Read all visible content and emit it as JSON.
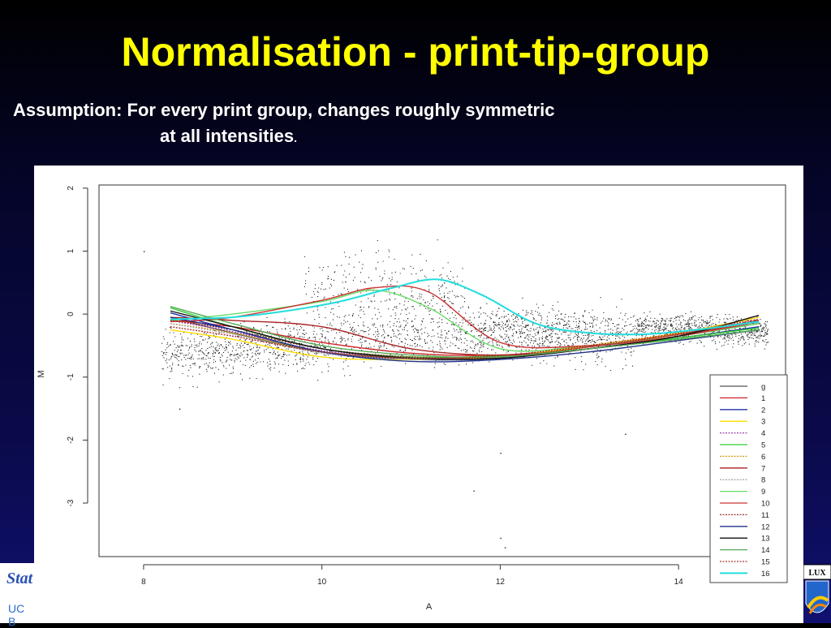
{
  "slide": {
    "title": "Normalisation - print-tip-group",
    "assumption_line1": "Assumption: For every print group, changes roughly symmetric",
    "assumption_line2": "at all intensities",
    "assumption_end": "."
  },
  "logos": {
    "left_text": "Stat",
    "left_caption": "UC B",
    "right_text": "LUX"
  },
  "chart_data": {
    "type": "scatter",
    "xlabel": "A",
    "ylabel": "M",
    "xlim": [
      7.5,
      15.2
    ],
    "ylim": [
      -3.85,
      2.05
    ],
    "x_ticks": [
      "8",
      "10",
      "12",
      "14"
    ],
    "y_ticks": [
      "2",
      "1",
      "0",
      "-1",
      "-2",
      "-3"
    ],
    "x_tick_values": [
      8,
      10,
      12,
      14
    ],
    "y_tick_values": [
      2,
      1,
      0,
      -1,
      -2,
      -3
    ],
    "grid": false,
    "legend_position": "bottom-right",
    "series": [
      {
        "name": "g",
        "color": "#555555",
        "style": "solid",
        "x": [
          8.3,
          9,
          10,
          11,
          12,
          13,
          14,
          14.9
        ],
        "y": [
          -0.05,
          -0.3,
          -0.6,
          -0.7,
          -0.68,
          -0.55,
          -0.35,
          -0.15
        ]
      },
      {
        "name": "1",
        "color": "#cc2222",
        "style": "solid",
        "x": [
          8.3,
          9,
          10,
          11,
          12,
          13,
          14,
          14.9
        ],
        "y": [
          -0.1,
          -0.2,
          -0.45,
          -0.62,
          -0.65,
          -0.52,
          -0.32,
          -0.12
        ]
      },
      {
        "name": "2",
        "color": "#2233aa",
        "style": "solid",
        "x": [
          8.3,
          9,
          10,
          11,
          12,
          13,
          14,
          14.9
        ],
        "y": [
          0.02,
          -0.25,
          -0.6,
          -0.72,
          -0.7,
          -0.55,
          -0.38,
          -0.2
        ]
      },
      {
        "name": "3",
        "color": "#ffdd00",
        "style": "solid",
        "x": [
          8.3,
          9,
          10,
          11,
          12,
          13,
          14,
          14.9
        ],
        "y": [
          -0.25,
          -0.4,
          -0.68,
          -0.72,
          -0.68,
          -0.5,
          -0.3,
          -0.05
        ]
      },
      {
        "name": "4",
        "color": "#9944aa",
        "style": "dotted",
        "x": [
          8.3,
          9,
          10,
          11,
          12,
          13,
          14,
          14.9
        ],
        "y": [
          -0.1,
          -0.28,
          -0.58,
          -0.7,
          -0.7,
          -0.55,
          -0.35,
          -0.15
        ]
      },
      {
        "name": "5",
        "color": "#33cc33",
        "style": "solid",
        "x": [
          8.3,
          9,
          10,
          11,
          12,
          13,
          14,
          14.9
        ],
        "y": [
          0.1,
          -0.2,
          -0.55,
          -0.68,
          -0.66,
          -0.55,
          -0.38,
          -0.22
        ]
      },
      {
        "name": "6",
        "color": "#cc9900",
        "style": "dotted",
        "x": [
          8.3,
          9,
          10,
          11,
          12,
          13,
          14,
          14.9
        ],
        "y": [
          -0.15,
          -0.3,
          -0.6,
          -0.7,
          -0.68,
          -0.52,
          -0.32,
          -0.1
        ]
      },
      {
        "name": "7",
        "color": "#aa2222",
        "style": "solid",
        "x": [
          8.3,
          9,
          10,
          11,
          12,
          13,
          14,
          14.9
        ],
        "y": [
          -0.05,
          -0.1,
          -0.2,
          -0.55,
          -0.65,
          -0.55,
          -0.35,
          -0.1
        ]
      },
      {
        "name": "8",
        "color": "#aaaaaa",
        "style": "dotted",
        "x": [
          8.3,
          9,
          10,
          11,
          12,
          13,
          14,
          14.9
        ],
        "y": [
          -0.15,
          -0.32,
          -0.62,
          -0.72,
          -0.7,
          -0.55,
          -0.35,
          -0.12
        ]
      },
      {
        "name": "9",
        "color": "#66dd66",
        "style": "solid",
        "x": [
          8.3,
          9,
          10,
          10.6,
          11.2,
          12,
          13,
          14,
          14.9
        ],
        "y": [
          -0.1,
          0,
          0.2,
          0.38,
          0.1,
          -0.55,
          -0.5,
          -0.35,
          -0.15
        ]
      },
      {
        "name": "10",
        "color": "#cc3333",
        "style": "solid",
        "x": [
          8.3,
          9,
          10,
          10.6,
          11.2,
          12,
          13,
          14,
          14.9
        ],
        "y": [
          -0.12,
          -0.05,
          0.22,
          0.42,
          0.35,
          -0.45,
          -0.5,
          -0.35,
          -0.12
        ]
      },
      {
        "name": "11",
        "color": "#993333",
        "style": "dotted",
        "x": [
          8.3,
          9,
          10,
          11,
          12,
          13,
          14,
          14.9
        ],
        "y": [
          -0.1,
          -0.25,
          -0.55,
          -0.68,
          -0.68,
          -0.52,
          -0.32,
          -0.1
        ]
      },
      {
        "name": "12",
        "color": "#223388",
        "style": "solid",
        "x": [
          8.3,
          9,
          10,
          11,
          12,
          13,
          14,
          14.9
        ],
        "y": [
          -0.05,
          -0.25,
          -0.6,
          -0.75,
          -0.72,
          -0.6,
          -0.42,
          -0.25
        ]
      },
      {
        "name": "13",
        "color": "#111111",
        "style": "solid",
        "x": [
          8.3,
          9,
          10,
          11,
          12,
          13,
          14,
          14.9
        ],
        "y": [
          0.05,
          -0.2,
          -0.55,
          -0.7,
          -0.7,
          -0.55,
          -0.35,
          -0.02
        ]
      },
      {
        "name": "14",
        "color": "#55aa55",
        "style": "solid",
        "x": [
          8.3,
          9,
          10,
          11,
          12,
          13,
          14,
          14.9
        ],
        "y": [
          0.12,
          -0.15,
          -0.5,
          -0.65,
          -0.68,
          -0.55,
          -0.4,
          -0.25
        ]
      },
      {
        "name": "15",
        "color": "#aa3333",
        "style": "dotted",
        "x": [
          8.3,
          9,
          10,
          11,
          12,
          13,
          14,
          14.9
        ],
        "y": [
          -0.2,
          -0.35,
          -0.6,
          -0.7,
          -0.66,
          -0.5,
          -0.3,
          -0.08
        ]
      },
      {
        "name": "16",
        "color": "#22dddd",
        "style": "solid",
        "x": [
          8.3,
          9,
          9.6,
          10.2,
          10.8,
          11.3,
          11.8,
          12.4,
          13,
          13.6,
          14.2,
          14.9
        ],
        "y": [
          -0.08,
          -0.05,
          0.05,
          0.2,
          0.42,
          0.55,
          0.3,
          -0.15,
          -0.3,
          -0.32,
          -0.25,
          -0.12
        ]
      }
    ]
  }
}
